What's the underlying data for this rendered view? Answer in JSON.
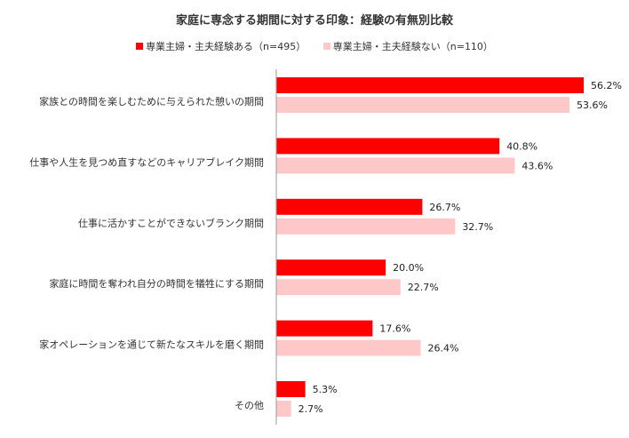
{
  "chart_data": {
    "type": "bar",
    "orientation": "horizontal",
    "title": "家庭に専念する期間に対する印象：経験の有無別比較",
    "categories": [
      "家族との時間を楽しむために与えられた憩いの期間",
      "仕事や人生を見つめ直すなどのキャリアブレイク期間",
      "仕事に活かすことができないブランク期間",
      "家庭に時間を奪われ自分の時間を犠牲にする期間",
      "家オペレーションを通じて新たなスキルを磨く期間",
      "その他"
    ],
    "series": [
      {
        "name": "専業主婦・主夫経験ある（n=495）",
        "color": "#ff0000",
        "values": [
          56.2,
          40.8,
          26.7,
          20.0,
          17.6,
          5.3
        ]
      },
      {
        "name": "専業主婦・主夫経験ない（n=110）",
        "color": "#ffc8c8",
        "values": [
          53.6,
          43.6,
          32.7,
          22.7,
          26.4,
          2.7
        ]
      }
    ],
    "value_suffix": "%",
    "xlim": [
      0,
      60
    ],
    "legend_position": "top",
    "grid": false
  }
}
